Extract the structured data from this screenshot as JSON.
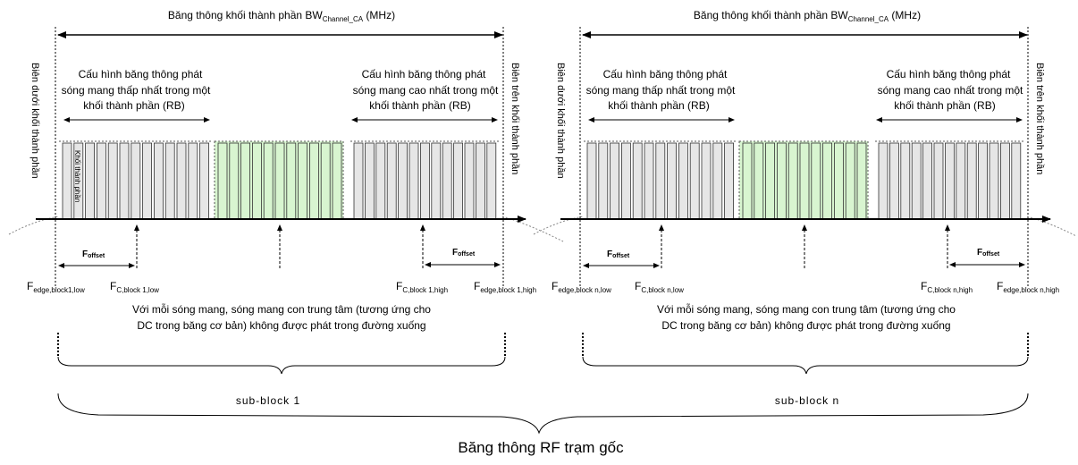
{
  "block_bandwidth": {
    "prefix": "Băng thông khối thành phần BW",
    "sub": "Channel_CA",
    "unit": " (MHz)"
  },
  "edge_labels": {
    "lower": "Biên dưới khối thành phần",
    "upper": "Biên trên khối thành phần"
  },
  "lowest_config": [
    "Cấu hình băng thông phát",
    "sóng mang thấp nhất trong một",
    "khối thành phần (RB)"
  ],
  "highest_config": [
    "Cấu hình băng thông phát",
    "sóng mang cao nhất trong một",
    "khối thành phần (RB)"
  ],
  "rb_label": "Khối thành phần",
  "foffset": {
    "main": "F",
    "sub": "offset"
  },
  "freq_labels_block1": {
    "edge_low": {
      "main": "F",
      "sub": "edge,block1,low"
    },
    "c_low": {
      "main": "F",
      "sub": "C,block 1,low"
    },
    "c_high": {
      "main": "F",
      "sub": "C,block 1,high"
    },
    "edge_high": {
      "main": "F",
      "sub": "edge,block 1,high"
    }
  },
  "freq_labels_blockn": {
    "edge_low": {
      "main": "F",
      "sub": "edge,block n,low"
    },
    "c_low": {
      "main": "F",
      "sub": "C,block n,low"
    },
    "c_high": {
      "main": "F",
      "sub": "C,block n,high"
    },
    "edge_high": {
      "main": "F",
      "sub": "edge,block n,high"
    }
  },
  "dc_note": [
    "Với mỗi sóng mang, sóng mang con trung tâm (tương ứng cho",
    "DC trong băng cơ bản) không được phát trong đường xuống"
  ],
  "subblock_labels": [
    "sub-block 1",
    "sub-block n"
  ],
  "rf_bandwidth": "Băng thông RF trạm gốc",
  "colors": {
    "rb_fill": "#e6e6e6",
    "rb_center_fill": "#d8f5d0",
    "line": "#000000",
    "dotted": "#888888"
  }
}
